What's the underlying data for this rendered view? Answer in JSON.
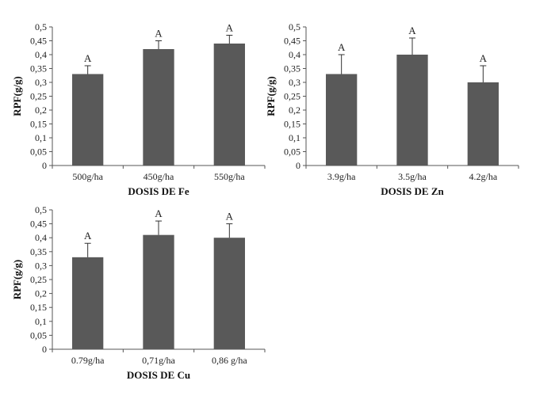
{
  "chart_data": [
    {
      "type": "bar",
      "categories": [
        "500g/ha",
        "450g/ha",
        "550g/ha"
      ],
      "values": [
        0.33,
        0.42,
        0.44
      ],
      "error": [
        0.03,
        0.03,
        0.03
      ],
      "labels": [
        "A",
        "A",
        "A"
      ],
      "xlabel": "DOSIS DE Fe",
      "ylabel": "RPF(g/g)",
      "ylim": [
        0,
        0.5
      ],
      "yticks": [
        "0",
        "0,05",
        "0,1",
        "0,15",
        "0,2",
        "0,25",
        "0,3",
        "0,35",
        "0,4",
        "0,45",
        "0,5"
      ],
      "grid": false,
      "bar_color": "#595959"
    },
    {
      "type": "bar",
      "categories": [
        "3.9g/ha",
        "3.5g/ha",
        "4.2g/ha"
      ],
      "values": [
        0.33,
        0.4,
        0.3
      ],
      "error": [
        0.07,
        0.06,
        0.06
      ],
      "labels": [
        "A",
        "A",
        "A"
      ],
      "xlabel": "DOSIS DE Zn",
      "ylabel": "RPF(g/g)",
      "ylim": [
        0,
        0.5
      ],
      "yticks": [
        "0",
        "0,05",
        "0,1",
        "0,15",
        "0,2",
        "0,25",
        "0,3",
        "0,35",
        "0,4",
        "0,45",
        "0,5"
      ],
      "grid": false,
      "bar_color": "#595959"
    },
    {
      "type": "bar",
      "categories": [
        "0.79g/ha",
        "0,71g/ha",
        "0,86 g/ha"
      ],
      "values": [
        0.33,
        0.41,
        0.4
      ],
      "error": [
        0.05,
        0.05,
        0.05
      ],
      "labels": [
        "A",
        "A",
        "A"
      ],
      "xlabel": "DOSIS DE Cu",
      "ylabel": "RPF(g/g)",
      "ylim": [
        0,
        0.5
      ],
      "yticks": [
        "0",
        "0,05",
        "0,1",
        "0,15",
        "0,2",
        "0,25",
        "0,3",
        "0,35",
        "0,4",
        "0,45",
        "0,5"
      ],
      "grid": false,
      "bar_color": "#595959"
    }
  ]
}
